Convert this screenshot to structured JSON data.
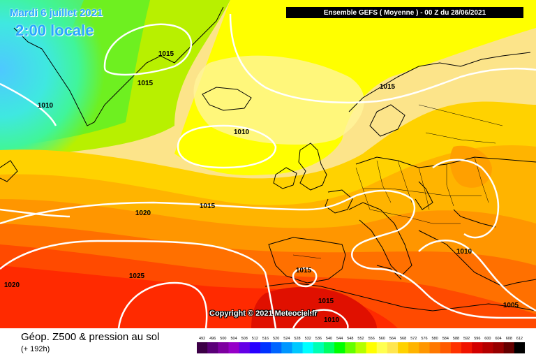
{
  "header": {
    "date": "Mardi 6 juillet 2021",
    "local_time": "2:00 locale",
    "run_info": "Ensemble GEFS  ( Moyenne )  - 00 Z du 28/06/2021"
  },
  "copyright": "Copyright © 2021 Meteociel.fr",
  "isobar_labels": [
    "1015",
    "1015",
    "1010",
    "1010",
    "1015",
    "1020",
    "1015",
    "1015",
    "1010",
    "1020",
    "1025",
    "1015",
    "1010",
    "1005"
  ],
  "footer": {
    "title": "Géop. Z500 & pression au sol",
    "subtitle": "(+ 192h)"
  },
  "legend": {
    "ticks": [
      "492",
      "496",
      "500",
      "504",
      "508",
      "512",
      "516",
      "520",
      "524",
      "528",
      "532",
      "536",
      "540",
      "544",
      "548",
      "552",
      "556",
      "560",
      "564",
      "568",
      "572",
      "576",
      "580",
      "584",
      "588",
      "592",
      "596",
      "600",
      "604",
      "608",
      "612"
    ],
    "colors": [
      "#3c0046",
      "#5a0078",
      "#7d00a0",
      "#9600c8",
      "#6400e6",
      "#2800ff",
      "#0032ff",
      "#0064ff",
      "#0096ff",
      "#00c8ff",
      "#00ffff",
      "#00ffb4",
      "#00ff64",
      "#00ff00",
      "#64ff00",
      "#b4ff00",
      "#ffff00",
      "#ffff50",
      "#ffe650",
      "#ffd200",
      "#ffb400",
      "#ff9600",
      "#ff7800",
      "#ff5a00",
      "#ff3200",
      "#f01400",
      "#d20000",
      "#b40000",
      "#960000",
      "#640000",
      "#000000"
    ]
  },
  "colors": {
    "title_blue": "#2aa7ff",
    "isobar": "#ffffff",
    "coastline": "#000000"
  }
}
